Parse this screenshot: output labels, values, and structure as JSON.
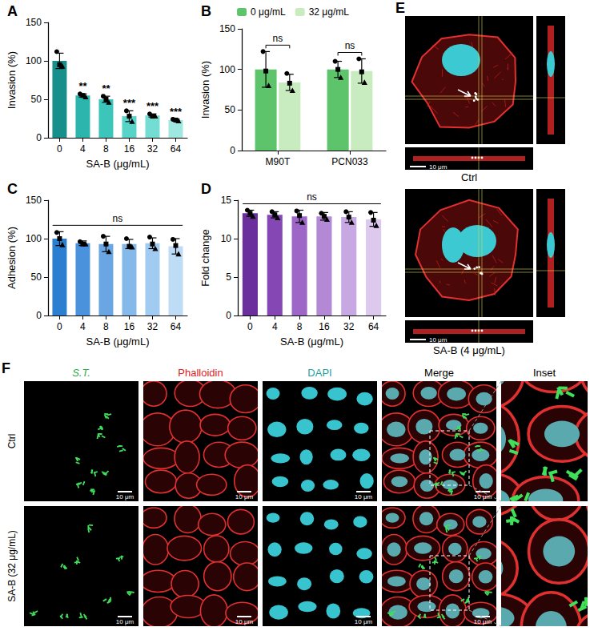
{
  "chart_data": [
    {
      "panel": "A",
      "type": "bar",
      "categories": [
        "0",
        "4",
        "8",
        "16",
        "32",
        "64"
      ],
      "values": [
        100,
        55,
        50,
        28,
        29,
        23
      ],
      "errors": [
        10,
        2,
        4,
        7,
        2,
        1
      ],
      "points": [
        [
          112,
          95,
          93
        ],
        [
          57,
          55,
          53
        ],
        [
          54,
          50,
          46
        ],
        [
          35,
          28,
          21
        ],
        [
          31,
          28,
          28
        ],
        [
          24,
          23,
          22
        ]
      ],
      "colors": [
        "#178f8a",
        "#2bb5ac",
        "#3cc6bb",
        "#57d3c8",
        "#74ddd3",
        "#9ee8e0"
      ],
      "annotations": [
        null,
        "**",
        "**",
        "***",
        "***",
        "***"
      ],
      "x_label": "SA-B (μg/mL)",
      "y_label": "Invasion (%)",
      "ylim": [
        0,
        150
      ],
      "yticks": [
        0,
        50,
        100,
        150
      ],
      "grid": false
    },
    {
      "panel": "B",
      "type": "bar",
      "categories": [
        "M90T",
        "PCN033"
      ],
      "series": [
        {
          "name": "0 μg/mL",
          "color": "#5ec46c",
          "values": [
            100,
            100
          ],
          "errors": [
            22,
            10
          ],
          "points": [
            [
              122,
              98,
              80
            ],
            [
              110,
              100,
              90
            ]
          ]
        },
        {
          "name": "32 μg/mL",
          "color": "#c8ecbf",
          "values": [
            84,
            98
          ],
          "errors": [
            10,
            15
          ],
          "points": [
            [
              95,
              83,
              74
            ],
            [
              113,
              97,
              84
            ]
          ]
        }
      ],
      "annotations": [
        "ns",
        "ns"
      ],
      "y_label": "Invasion (%)",
      "legend": "top",
      "ylim": [
        0,
        150
      ],
      "yticks": [
        0,
        50,
        100,
        150
      ],
      "grid": false
    },
    {
      "panel": "C",
      "type": "bar",
      "categories": [
        "0",
        "4",
        "8",
        "16",
        "32",
        "64"
      ],
      "values": [
        100,
        94,
        93,
        93,
        94,
        90
      ],
      "errors": [
        9,
        3,
        10,
        6,
        7,
        10
      ],
      "points": [
        [
          108,
          100,
          92
        ],
        [
          96,
          93,
          93
        ],
        [
          103,
          93,
          83
        ],
        [
          100,
          90,
          89
        ],
        [
          102,
          93,
          87
        ],
        [
          99,
          91,
          80
        ]
      ],
      "colors": [
        "#2b7fd1",
        "#4a93dc",
        "#6aa6e3",
        "#85b9ea",
        "#a1cbf0",
        "#bedcf5"
      ],
      "group_annotation": "ns",
      "x_label": "SA-B (μg/mL)",
      "y_label": "Adhesion (%)",
      "ylim": [
        0,
        150
      ],
      "yticks": [
        0,
        50,
        100,
        150
      ],
      "grid": false
    },
    {
      "panel": "D",
      "type": "bar",
      "categories": [
        "0",
        "4",
        "8",
        "16",
        "32",
        "64"
      ],
      "values": [
        13.3,
        13.1,
        12.9,
        12.9,
        12.8,
        12.5
      ],
      "errors": [
        0.4,
        0.4,
        0.8,
        0.5,
        0.7,
        0.9
      ],
      "points": [
        [
          13.7,
          13.3,
          12.9
        ],
        [
          13.5,
          13.1,
          12.7
        ],
        [
          13.6,
          13.0,
          12.1
        ],
        [
          13.3,
          12.9,
          12.5
        ],
        [
          13.5,
          12.8,
          12.1
        ],
        [
          13.4,
          12.4,
          11.7
        ]
      ],
      "colors": [
        "#6a2f9c",
        "#8447b4",
        "#9d66c7",
        "#b389d6",
        "#c8a8e2",
        "#ddc9ee"
      ],
      "group_annotation": "ns",
      "x_label": "SA-B (μg/mL)",
      "y_label": "Fold change",
      "ylim": [
        0,
        15
      ],
      "yticks": [
        0,
        5,
        10,
        15
      ],
      "grid": false
    }
  ],
  "image_panels": [
    {
      "panel": "E",
      "images": [
        {
          "label": "Ctrl",
          "scale_bar": "10 μm"
        },
        {
          "label": "SA-B (4 μg/mL)",
          "scale_bar": "10 μm"
        }
      ]
    },
    {
      "panel": "F",
      "columns": [
        "S.T.",
        "Phalloidin",
        "DAPI",
        "Merge",
        "Inset"
      ],
      "column_colors": [
        "#2fa84a",
        "#e0201b",
        "#1f9ea3",
        "#000000",
        "#000000"
      ],
      "rows": [
        "Ctrl",
        "SA-B (32 μg/mL)"
      ],
      "scale_bar": "10 μm"
    }
  ]
}
